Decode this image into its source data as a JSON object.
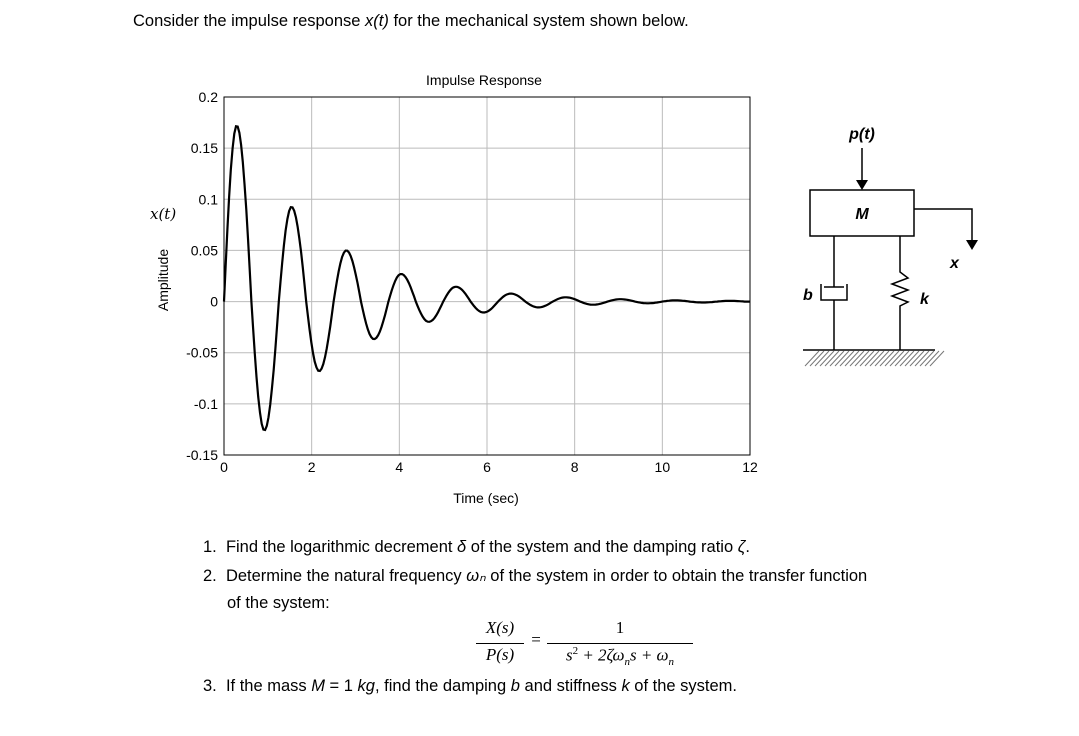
{
  "intro": {
    "pre": "Consider the impulse response ",
    "var": "x(t)",
    "post": " for the mechanical system shown below."
  },
  "chart_data": {
    "type": "line",
    "title": "Impulse Response",
    "xlabel": "Time (sec)",
    "ylabel": "Amplitude",
    "ylabel_extra": "x(t)",
    "xlim": [
      0,
      12
    ],
    "ylim": [
      -0.15,
      0.2
    ],
    "xticks": [
      "0",
      "2",
      "4",
      "6",
      "8",
      "10",
      "12"
    ],
    "yticks": [
      "0.2",
      "0.15",
      "0.1",
      "0.05",
      "0",
      "-0.05",
      "-0.1",
      "-0.15"
    ],
    "grid": true,
    "line_color": "#000000",
    "half_period": 0.625,
    "extrema_t": [
      0.29,
      0.92,
      1.54,
      2.17,
      2.79,
      3.42,
      4.04,
      4.67,
      5.29,
      5.92,
      6.54,
      7.17,
      7.79,
      8.42,
      9.04,
      9.67,
      10.29,
      10.92,
      11.54
    ],
    "extrema_x": [
      0.172,
      -0.126,
      0.0926,
      -0.068,
      0.05,
      -0.0367,
      0.027,
      -0.0198,
      0.0145,
      -0.0107,
      0.0078,
      -0.0057,
      0.0042,
      -0.0031,
      0.0023,
      -0.0017,
      0.0012,
      -0.0009,
      0.0007
    ]
  },
  "diagram": {
    "force": "p(t)",
    "mass": "M",
    "damper": "b",
    "spring": "k",
    "displacement": "x"
  },
  "questions": [
    {
      "num": "1.",
      "parts": [
        "Find the logarithmic decrement ",
        "δ",
        " of the system and the damping ratio ",
        "ζ",
        "."
      ]
    },
    {
      "num": "2.",
      "parts": [
        "Determine the natural frequency ",
        "ωₙ",
        " of the system in order to obtain the transfer function"
      ],
      "cont": "of the system:"
    },
    {
      "num": "3.",
      "parts": [
        "If the mass ",
        "M",
        " = 1 ",
        "kg",
        ", find the damping ",
        "b",
        " and stiffness ",
        "k",
        " of the system."
      ]
    }
  ],
  "equation": {
    "lhs_num": "X(s)",
    "lhs_den": "P(s)",
    "eq": "=",
    "rhs_num": "1",
    "rhs_den_a": "s",
    "rhs_den_b": "2",
    "rhs_den_c": " + 2ζω",
    "rhs_den_d": "n",
    "rhs_den_e": "s + ω",
    "rhs_den_f": "n"
  }
}
